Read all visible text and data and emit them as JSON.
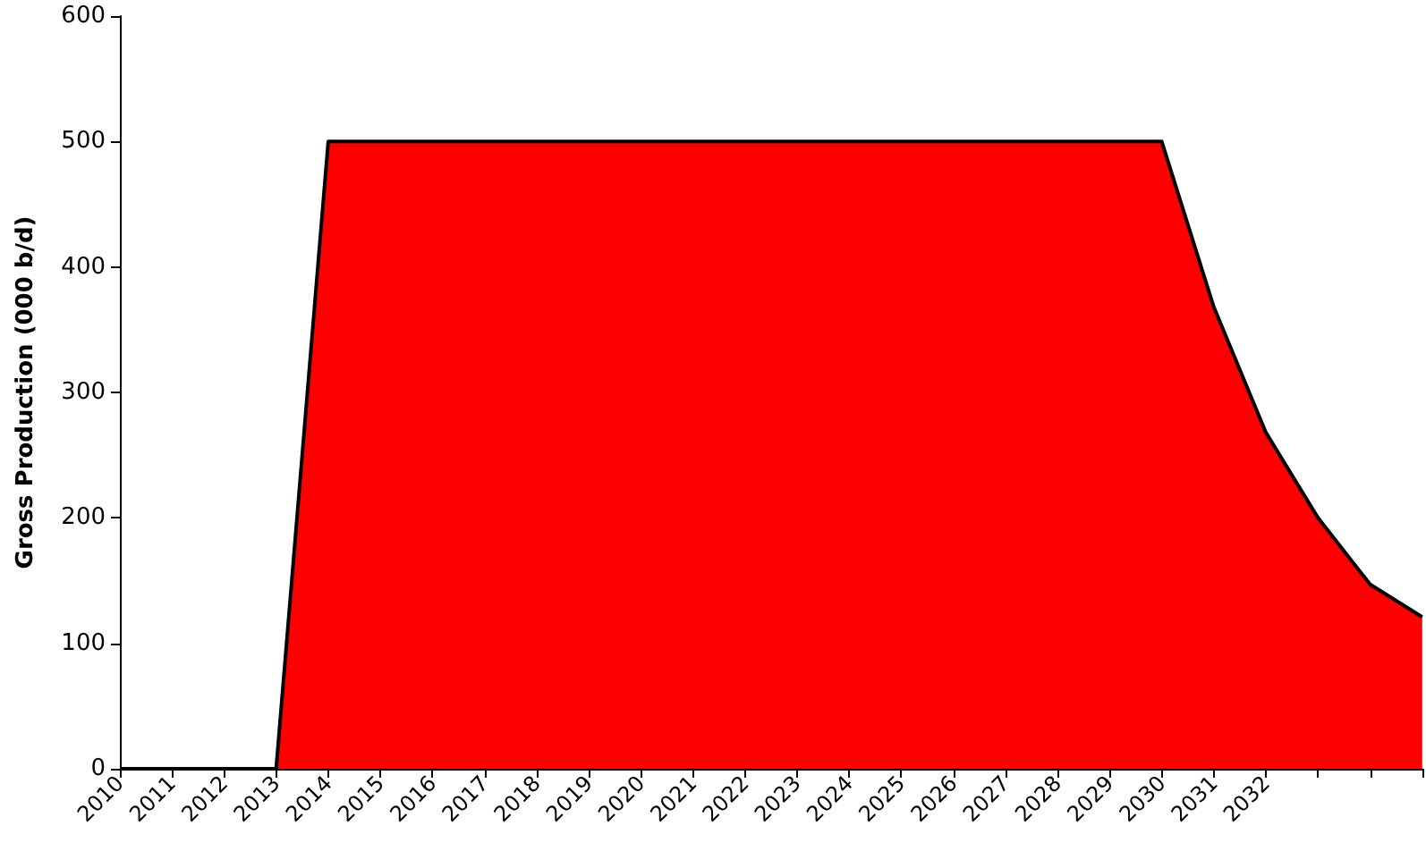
{
  "chart_data": {
    "type": "area",
    "ylabel": "Gross Production (000 b/d)",
    "categories": [
      "2010",
      "2011",
      "2012",
      "2013",
      "2014",
      "2015",
      "2016",
      "2017",
      "2018",
      "2019",
      "2020",
      "2021",
      "2022",
      "2023",
      "2024",
      "2025",
      "2026",
      "2027",
      "2028",
      "2029",
      "2030",
      "2031",
      "2032",
      null,
      null,
      null
    ],
    "series": [
      {
        "color": "#ff0000",
        "values": [
          0,
          0,
          0,
          0,
          500,
          500,
          500,
          500,
          500,
          500,
          500,
          500,
          500,
          500,
          500,
          500,
          500,
          500,
          500,
          500,
          500,
          368,
          268,
          200,
          147,
          121
        ]
      }
    ],
    "ylim": [
      0,
      600
    ],
    "yticks": [
      0,
      100,
      200,
      300,
      400,
      500,
      600
    ]
  }
}
